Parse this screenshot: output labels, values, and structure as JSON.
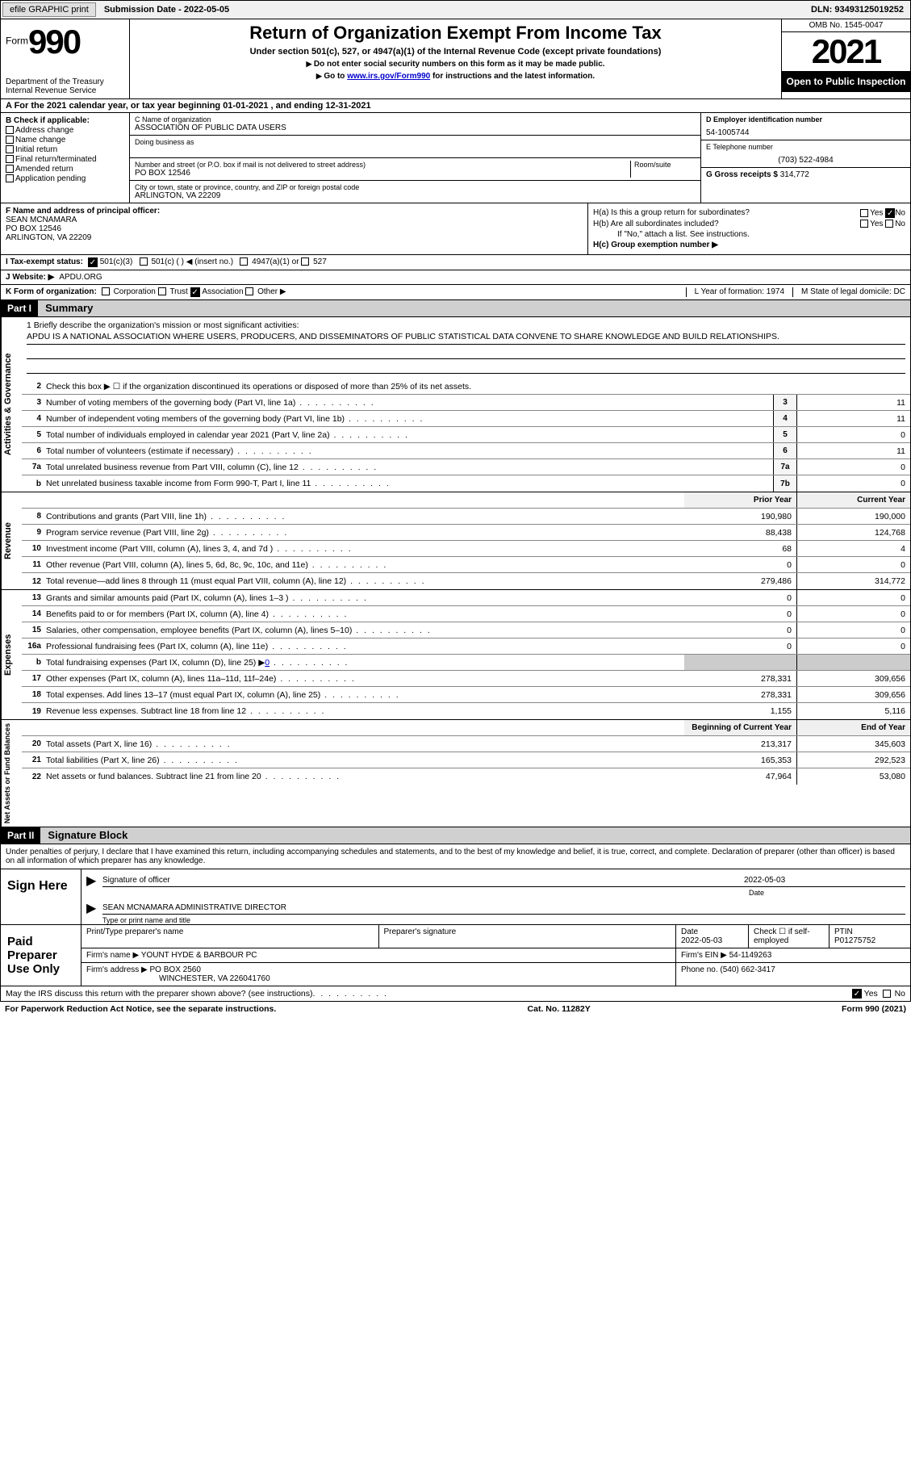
{
  "topbar": {
    "efile": "efile GRAPHIC print",
    "submission": "Submission Date - 2022-05-05",
    "dln": "DLN: 93493125019252"
  },
  "header": {
    "form_word": "Form",
    "form_num": "990",
    "title": "Return of Organization Exempt From Income Tax",
    "subtitle": "Under section 501(c), 527, or 4947(a)(1) of the Internal Revenue Code (except private foundations)",
    "note1": "Do not enter social security numbers on this form as it may be made public.",
    "note2_a": "Go to ",
    "note2_link": "www.irs.gov/Form990",
    "note2_b": " for instructions and the latest information.",
    "dept": "Department of the Treasury",
    "irs": "Internal Revenue Service",
    "omb": "OMB No. 1545-0047",
    "year": "2021",
    "open": "Open to Public Inspection"
  },
  "rowA": "A For the 2021 calendar year, or tax year beginning 01-01-2021    , and ending 12-31-2021",
  "colB": {
    "head": "B Check if applicable:",
    "opts": [
      "Address change",
      "Name change",
      "Initial return",
      "Final return/terminated",
      "Amended return",
      "Application pending"
    ]
  },
  "colC": {
    "name_lab": "C Name of organization",
    "name": "ASSOCIATION OF PUBLIC DATA USERS",
    "dba_lab": "Doing business as",
    "addr_lab": "Number and street (or P.O. box if mail is not delivered to street address)",
    "room_lab": "Room/suite",
    "addr": "PO BOX 12546",
    "city_lab": "City or town, state or province, country, and ZIP or foreign postal code",
    "city": "ARLINGTON, VA  22209"
  },
  "colD": {
    "ein_lab": "D Employer identification number",
    "ein": "54-1005744",
    "tel_lab": "E Telephone number",
    "tel": "(703) 522-4984",
    "gross_lab": "G Gross receipts $",
    "gross": "314,772"
  },
  "rowF": {
    "lab": "F  Name and address of principal officer:",
    "name": "SEAN MCNAMARA",
    "addr1": "PO BOX 12546",
    "addr2": "ARLINGTON, VA  22209"
  },
  "rowH": {
    "ha": "H(a)  Is this a group return for subordinates?",
    "hb": "H(b)  Are all subordinates included?",
    "hb_note": "If \"No,\" attach a list. See instructions.",
    "hc": "H(c)  Group exemption number ▶",
    "yes": "Yes",
    "no": "No"
  },
  "rowI": {
    "lab": "I    Tax-exempt status:",
    "o1": "501(c)(3)",
    "o2": "501(c) (  ) ◀ (insert no.)",
    "o3": "4947(a)(1) or",
    "o4": "527"
  },
  "rowJ": {
    "lab": "J   Website: ▶",
    "val": "APDU.ORG"
  },
  "rowK": {
    "lab": "K Form of organization:",
    "o1": "Corporation",
    "o2": "Trust",
    "o3": "Association",
    "o4": "Other ▶",
    "L": "L Year of formation: 1974",
    "M": "M State of legal domicile: DC"
  },
  "part1": {
    "num": "Part I",
    "title": "Summary"
  },
  "mission": {
    "lab": "1   Briefly describe the organization's mission or most significant activities:",
    "text": "APDU IS A NATIONAL ASSOCIATION WHERE USERS, PRODUCERS, AND DISSEMINATORS OF PUBLIC STATISTICAL DATA CONVENE TO SHARE KNOWLEDGE AND BUILD RELATIONSHIPS."
  },
  "line2": "Check this box ▶ ☐  if the organization discontinued its operations or disposed of more than 25% of its net assets.",
  "sections": {
    "gov_label": "Activities & Governance",
    "rev_label": "Revenue",
    "exp_label": "Expenses",
    "net_label": "Net Assets or Fund Balances"
  },
  "gov_lines": [
    {
      "n": "3",
      "t": "Number of voting members of the governing body (Part VI, line 1a)",
      "box": "3",
      "v": "11"
    },
    {
      "n": "4",
      "t": "Number of independent voting members of the governing body (Part VI, line 1b)",
      "box": "4",
      "v": "11"
    },
    {
      "n": "5",
      "t": "Total number of individuals employed in calendar year 2021 (Part V, line 2a)",
      "box": "5",
      "v": "0"
    },
    {
      "n": "6",
      "t": "Total number of volunteers (estimate if necessary)",
      "box": "6",
      "v": "11"
    },
    {
      "n": "7a",
      "t": "Total unrelated business revenue from Part VIII, column (C), line 12",
      "box": "7a",
      "v": "0"
    },
    {
      "n": "b",
      "t": "Net unrelated business taxable income from Form 990-T, Part I, line 11",
      "box": "7b",
      "v": "0"
    }
  ],
  "col_headers": {
    "prior": "Prior Year",
    "current": "Current Year",
    "begin": "Beginning of Current Year",
    "end": "End of Year"
  },
  "rev_lines": [
    {
      "n": "8",
      "t": "Contributions and grants (Part VIII, line 1h)",
      "p": "190,980",
      "c": "190,000"
    },
    {
      "n": "9",
      "t": "Program service revenue (Part VIII, line 2g)",
      "p": "88,438",
      "c": "124,768"
    },
    {
      "n": "10",
      "t": "Investment income (Part VIII, column (A), lines 3, 4, and 7d )",
      "p": "68",
      "c": "4"
    },
    {
      "n": "11",
      "t": "Other revenue (Part VIII, column (A), lines 5, 6d, 8c, 9c, 10c, and 11e)",
      "p": "0",
      "c": "0"
    },
    {
      "n": "12",
      "t": "Total revenue—add lines 8 through 11 (must equal Part VIII, column (A), line 12)",
      "p": "279,486",
      "c": "314,772"
    }
  ],
  "exp_lines": [
    {
      "n": "13",
      "t": "Grants and similar amounts paid (Part IX, column (A), lines 1–3 )",
      "p": "0",
      "c": "0"
    },
    {
      "n": "14",
      "t": "Benefits paid to or for members (Part IX, column (A), line 4)",
      "p": "0",
      "c": "0"
    },
    {
      "n": "15",
      "t": "Salaries, other compensation, employee benefits (Part IX, column (A), lines 5–10)",
      "p": "0",
      "c": "0"
    },
    {
      "n": "16a",
      "t": "Professional fundraising fees (Part IX, column (A), line 11e)",
      "p": "0",
      "c": "0"
    },
    {
      "n": "b",
      "t": "Total fundraising expenses (Part IX, column (D), line 25) ▶",
      "p": "grey",
      "c": "grey",
      "link": "0"
    },
    {
      "n": "17",
      "t": "Other expenses (Part IX, column (A), lines 11a–11d, 11f–24e)",
      "p": "278,331",
      "c": "309,656"
    },
    {
      "n": "18",
      "t": "Total expenses. Add lines 13–17 (must equal Part IX, column (A), line 25)",
      "p": "278,331",
      "c": "309,656"
    },
    {
      "n": "19",
      "t": "Revenue less expenses. Subtract line 18 from line 12",
      "p": "1,155",
      "c": "5,116"
    }
  ],
  "net_lines": [
    {
      "n": "20",
      "t": "Total assets (Part X, line 16)",
      "p": "213,317",
      "c": "345,603"
    },
    {
      "n": "21",
      "t": "Total liabilities (Part X, line 26)",
      "p": "165,353",
      "c": "292,523"
    },
    {
      "n": "22",
      "t": "Net assets or fund balances. Subtract line 21 from line 20",
      "p": "47,964",
      "c": "53,080"
    }
  ],
  "part2": {
    "num": "Part II",
    "title": "Signature Block"
  },
  "sig": {
    "declare": "Under penalties of perjury, I declare that I have examined this return, including accompanying schedules and statements, and to the best of my knowledge and belief, it is true, correct, and complete. Declaration of preparer (other than officer) is based on all information of which preparer has any knowledge.",
    "sign_here": "Sign Here",
    "sig_officer": "Signature of officer",
    "date": "Date",
    "date_val": "2022-05-03",
    "name_title": "SEAN MCNAMARA  ADMINISTRATIVE DIRECTOR",
    "type_name": "Type or print name and title"
  },
  "prep": {
    "label": "Paid Preparer Use Only",
    "h1": "Print/Type preparer's name",
    "h2": "Preparer's signature",
    "h3": "Date",
    "h3v": "2022-05-03",
    "h4": "Check ☐ if self-employed",
    "h5": "PTIN",
    "h5v": "P01275752",
    "firm_name_lab": "Firm's name     ▶",
    "firm_name": "YOUNT HYDE & BARBOUR PC",
    "firm_ein_lab": "Firm's EIN ▶",
    "firm_ein": "54-1149263",
    "firm_addr_lab": "Firm's address ▶",
    "firm_addr1": "PO BOX 2560",
    "firm_addr2": "WINCHESTER, VA  226041760",
    "phone_lab": "Phone no.",
    "phone": "(540) 662-3417"
  },
  "footer": {
    "discuss": "May the IRS discuss this return with the preparer shown above? (see instructions)",
    "yes": "Yes",
    "no": "No",
    "pra": "For Paperwork Reduction Act Notice, see the separate instructions.",
    "cat": "Cat. No. 11282Y",
    "form": "Form 990 (2021)"
  }
}
